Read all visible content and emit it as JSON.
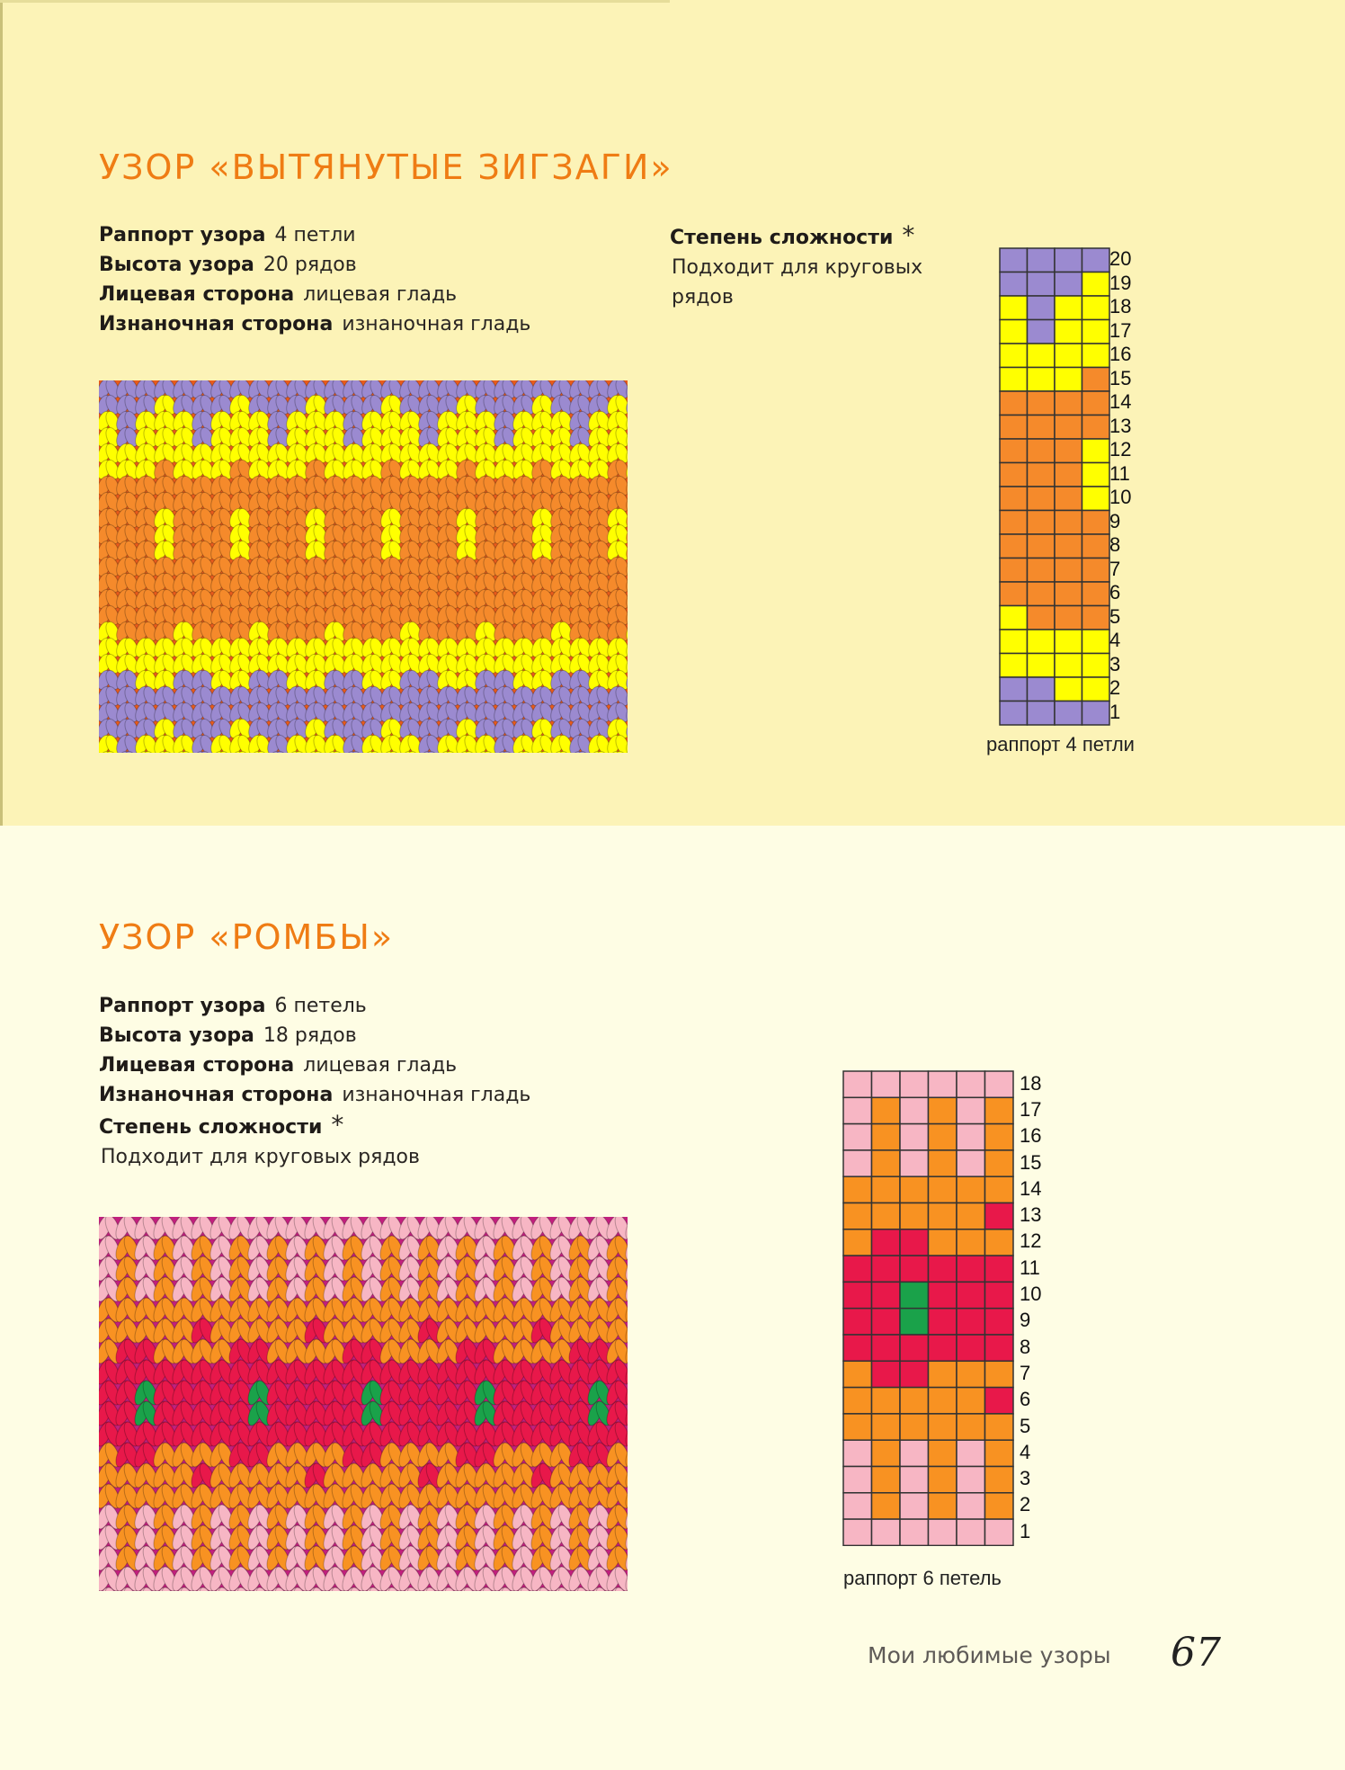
{
  "pattern1": {
    "title": "УЗОР «ВЫТЯНУТЫЕ ЗИГЗАГИ»",
    "rapport_label": "Раппорт узора",
    "rapport_value": "4 петли",
    "height_label": "Высота узора",
    "height_value": "20 рядов",
    "front_label": "Лицевая сторона",
    "front_value": "лицевая гладь",
    "back_label": "Изнаночная сторона",
    "back_value": "изнаночная гладь",
    "difficulty_label": "Степень сложности",
    "difficulty_value": "*",
    "suitable": "Подходит для круговых рядов",
    "chart_caption": "раппорт 4 петли",
    "colors": {
      "P": "#9b8ad0",
      "Y": "#ffff00",
      "O": "#f58a2b"
    },
    "grid": [
      "PPPP",
      "PPPY",
      "YPYY",
      "YPYY",
      "YYYY",
      "YYYO",
      "OOOO",
      "OOOO",
      "OOOY",
      "OOOY",
      "OOOY",
      "OOOO",
      "OOOO",
      "OOOO",
      "OOOO",
      "YOOO",
      "YYYY",
      "YYYY",
      "PPYY",
      "PPPP"
    ]
  },
  "pattern2": {
    "title": "УЗОР «РОМБЫ»",
    "rapport_label": "Раппорт узора",
    "rapport_value": "6 петель",
    "height_label": "Высота узора",
    "height_value": "18 рядов",
    "front_label": "Лицевая сторона",
    "front_value": "лицевая гладь",
    "back_label": "Изнаночная сторона",
    "back_value": "изнаночная гладь",
    "difficulty_label": "Степень сложности",
    "difficulty_value": "*",
    "suitable": "Подходит для круговых рядов",
    "chart_caption": "раппорт 6 петель",
    "colors": {
      "K": "#f7b6c4",
      "O": "#f89222",
      "R": "#e8184a",
      "G": "#1aa24a"
    },
    "grid": [
      "KKKKKK",
      "KOKOKO",
      "KOKOKO",
      "KOKOKO",
      "OOOOOO",
      "OOOOOR",
      "ORROOO",
      "RRRRRR",
      "RRGRRR",
      "RRGRRR",
      "RRRRRR",
      "ORROOO",
      "OOOOOR",
      "OOOOOO",
      "KOKOKO",
      "KOKOKO",
      "KOKOKO",
      "KKKKKK"
    ]
  },
  "footer": {
    "book_title": "Мои любимые узоры",
    "page_number": "67"
  }
}
